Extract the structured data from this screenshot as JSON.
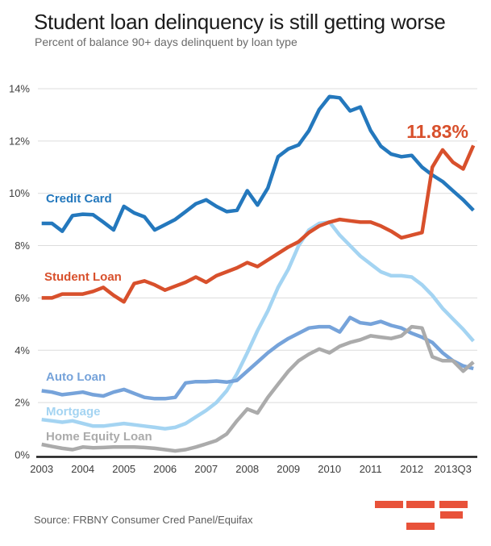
{
  "header": {
    "title": "Student loan delinquency is still getting worse",
    "subtitle": "Percent of balance 90+ days delinquent by loan type"
  },
  "footer": {
    "source": "Source: FRBNY Consumer Cred Panel/Equifax"
  },
  "logo": {
    "color": "#e8523a"
  },
  "chart_data": {
    "type": "line",
    "title": "Percent of balance 90+ days delinquent by loan type",
    "xlabel": "",
    "ylabel": "",
    "ylim": [
      0,
      14
    ],
    "grid": true,
    "legend_position": "inline-labels",
    "y_ticks": [
      "0%",
      "2%",
      "4%",
      "6%",
      "8%",
      "10%",
      "12%",
      "14%"
    ],
    "x_ticks": [
      "2003",
      "2004",
      "2005",
      "2006",
      "2007",
      "2008",
      "2009",
      "2010",
      "2011",
      "2012",
      "2013Q3"
    ],
    "x": [
      "2003Q1",
      "2003Q2",
      "2003Q3",
      "2003Q4",
      "2004Q1",
      "2004Q2",
      "2004Q3",
      "2004Q4",
      "2005Q1",
      "2005Q2",
      "2005Q3",
      "2005Q4",
      "2006Q1",
      "2006Q2",
      "2006Q3",
      "2006Q4",
      "2007Q1",
      "2007Q2",
      "2007Q3",
      "2007Q4",
      "2008Q1",
      "2008Q2",
      "2008Q3",
      "2008Q4",
      "2009Q1",
      "2009Q2",
      "2009Q3",
      "2009Q4",
      "2010Q1",
      "2010Q2",
      "2010Q3",
      "2010Q4",
      "2011Q1",
      "2011Q2",
      "2011Q3",
      "2011Q4",
      "2012Q1",
      "2012Q2",
      "2012Q3",
      "2012Q4",
      "2013Q1",
      "2013Q2",
      "2013Q3"
    ],
    "annotation": {
      "text": "11.83%",
      "series": "student_loan",
      "color": "#d8502c"
    },
    "series": [
      {
        "id": "credit_card",
        "name": "Credit Card",
        "color": "#2478bd",
        "values": [
          8.85,
          8.85,
          8.55,
          9.15,
          9.2,
          9.18,
          8.9,
          8.6,
          9.5,
          9.25,
          9.1,
          8.6,
          8.8,
          9.0,
          9.3,
          9.6,
          9.75,
          9.5,
          9.3,
          9.35,
          10.1,
          9.55,
          10.2,
          11.4,
          11.7,
          11.85,
          12.4,
          13.2,
          13.7,
          13.65,
          13.15,
          13.3,
          12.4,
          11.8,
          11.5,
          11.4,
          11.45,
          11.0,
          10.7,
          10.45,
          10.1,
          9.75,
          9.35
        ]
      },
      {
        "id": "student_loan",
        "name": "Student Loan",
        "color": "#d8502c",
        "values": [
          6.0,
          6.0,
          6.15,
          6.15,
          6.15,
          6.25,
          6.4,
          6.1,
          5.85,
          6.55,
          6.65,
          6.5,
          6.3,
          6.45,
          6.6,
          6.8,
          6.6,
          6.85,
          7.0,
          7.15,
          7.35,
          7.2,
          7.45,
          7.7,
          7.95,
          8.15,
          8.5,
          8.75,
          8.9,
          9.0,
          8.95,
          8.9,
          8.9,
          8.75,
          8.55,
          8.3,
          8.4,
          8.5,
          11.0,
          11.66,
          11.19,
          10.93,
          11.83
        ]
      },
      {
        "id": "auto_loan",
        "name": "Auto Loan",
        "color": "#76a3da",
        "values": [
          2.45,
          2.4,
          2.3,
          2.35,
          2.4,
          2.3,
          2.25,
          2.4,
          2.5,
          2.35,
          2.2,
          2.15,
          2.15,
          2.2,
          2.75,
          2.8,
          2.8,
          2.82,
          2.78,
          2.85,
          3.2,
          3.55,
          3.9,
          4.2,
          4.45,
          4.65,
          4.85,
          4.9,
          4.9,
          4.7,
          5.25,
          5.05,
          5.0,
          5.1,
          4.95,
          4.85,
          4.65,
          4.5,
          4.3,
          3.9,
          3.6,
          3.4,
          3.3
        ]
      },
      {
        "id": "mortgage",
        "name": "Mortgage",
        "color": "#a4d4f2",
        "values": [
          1.35,
          1.3,
          1.25,
          1.3,
          1.2,
          1.1,
          1.1,
          1.15,
          1.2,
          1.15,
          1.1,
          1.05,
          1.0,
          1.05,
          1.2,
          1.45,
          1.7,
          2.0,
          2.45,
          3.1,
          3.9,
          4.75,
          5.5,
          6.4,
          7.1,
          8.0,
          8.6,
          8.85,
          8.9,
          8.4,
          8.0,
          7.6,
          7.3,
          7.0,
          6.85,
          6.85,
          6.8,
          6.5,
          6.1,
          5.6,
          5.2,
          4.8,
          4.35
        ]
      },
      {
        "id": "home_equity",
        "name": "Home Equity Loan",
        "color": "#ababab",
        "values": [
          0.4,
          0.32,
          0.25,
          0.2,
          0.3,
          0.27,
          0.28,
          0.3,
          0.3,
          0.3,
          0.28,
          0.25,
          0.2,
          0.15,
          0.2,
          0.3,
          0.42,
          0.55,
          0.8,
          1.3,
          1.75,
          1.6,
          2.2,
          2.7,
          3.2,
          3.6,
          3.85,
          4.05,
          3.9,
          4.15,
          4.3,
          4.4,
          4.55,
          4.5,
          4.45,
          4.55,
          4.9,
          4.85,
          3.75,
          3.6,
          3.6,
          3.2,
          3.55
        ]
      }
    ]
  }
}
